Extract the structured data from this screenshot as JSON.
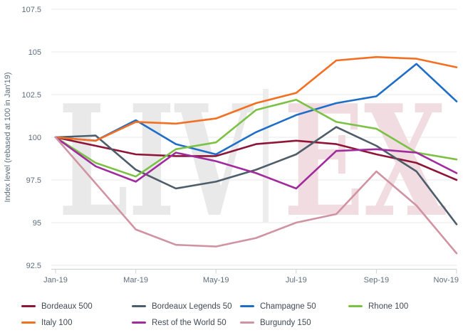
{
  "watermark": {
    "left": "LIV",
    "separator": "|",
    "right": "EX",
    "left_color": "#e9e9e9",
    "separator_color": "#ededed",
    "right_color": "#f1dce1"
  },
  "y_axis": {
    "title": "Index level (rebased at 100 in Jan'19)",
    "tick_labels": [
      "107.5",
      "105",
      "102.5",
      "100",
      "97.5",
      "95",
      "92.5"
    ],
    "min": 92.5,
    "max": 107.5,
    "step": 2.5,
    "label_color": "#5d6e7c"
  },
  "x_axis": {
    "tick_labels": [
      "Jan-19",
      "Mar-19",
      "May-19",
      "Jul-19",
      "Sep-19",
      "Nov-19"
    ],
    "tick_month_indices": [
      0,
      2,
      4,
      6,
      8,
      10
    ],
    "label_color": "#5d6e7c"
  },
  "chart_data": {
    "type": "line",
    "title": "",
    "x": [
      "Jan-19",
      "Feb-19",
      "Mar-19",
      "Apr-19",
      "May-19",
      "Jun-19",
      "Jul-19",
      "Aug-19",
      "Sep-19",
      "Oct-19",
      "Nov-19"
    ],
    "xlabel": "",
    "ylabel": "Index level (rebased at 100 in Jan'19)",
    "ylim": [
      92.5,
      107.5
    ],
    "grid": "horizontal",
    "legend_position": "bottom",
    "series": [
      {
        "name": "Bordeaux 500",
        "color": "#8e1537",
        "values": [
          100,
          99.5,
          99.0,
          98.9,
          98.9,
          99.6,
          99.8,
          99.6,
          99.0,
          98.5,
          97.5
        ]
      },
      {
        "name": "Bordeaux Legends 50",
        "color": "#4d5d6a",
        "values": [
          100,
          100.1,
          98.1,
          97.0,
          97.4,
          98.1,
          99.0,
          100.6,
          99.5,
          98.0,
          94.9
        ]
      },
      {
        "name": "Champagne 50",
        "color": "#1e6ec8",
        "values": [
          100,
          99.8,
          101.0,
          99.6,
          99.0,
          100.3,
          101.3,
          102.0,
          102.4,
          104.3,
          102.1
        ]
      },
      {
        "name": "Rhone 100",
        "color": "#7bc143",
        "values": [
          100,
          98.5,
          97.7,
          99.3,
          99.7,
          101.6,
          102.2,
          100.9,
          100.5,
          99.1,
          98.7
        ]
      },
      {
        "name": "Italy 100",
        "color": "#f36f21",
        "values": [
          100,
          99.8,
          100.9,
          100.8,
          101.1,
          102.0,
          102.6,
          104.5,
          104.7,
          104.6,
          104.1
        ]
      },
      {
        "name": "Rest of the World 50",
        "color": "#a02b9e",
        "values": [
          100,
          98.3,
          97.4,
          99.1,
          98.6,
          97.9,
          97.0,
          99.2,
          99.3,
          99.1,
          97.9
        ]
      },
      {
        "name": "Burgundy 150",
        "color": "#d093a2",
        "values": [
          100,
          97.3,
          94.6,
          93.7,
          93.6,
          94.1,
          95.0,
          95.5,
          98.0,
          96.0,
          93.2
        ]
      }
    ]
  },
  "style": {
    "gridline_color": "#e8e8e8",
    "axisline_color": "#c9cfd4",
    "tick_color": "#ccd2d6"
  }
}
